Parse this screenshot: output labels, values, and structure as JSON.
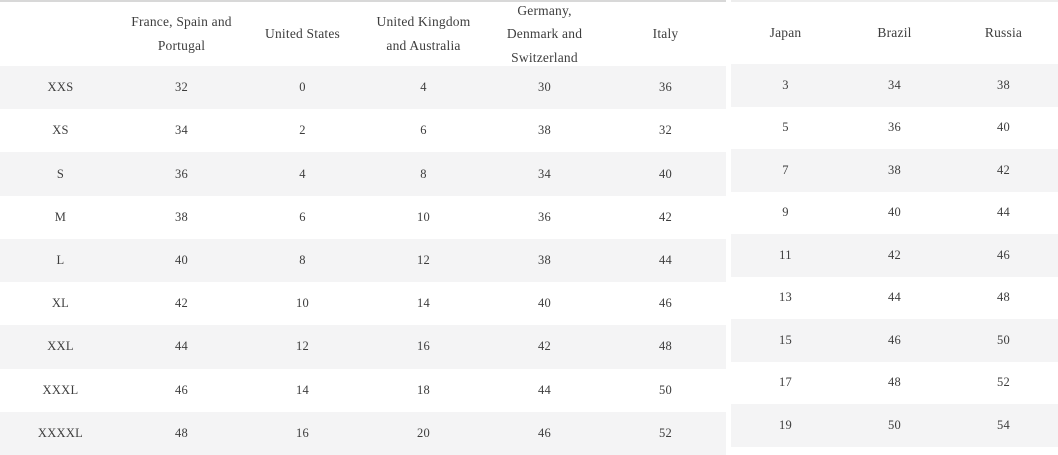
{
  "size_tables": {
    "international": {
      "columns": [
        "",
        "France, Spain and Portugal",
        "United States",
        "United Kingdom and Australia",
        "Germany, Denmark and Switzerland",
        "Italy"
      ],
      "rows": [
        [
          "XXS",
          "32",
          "0",
          "4",
          "30",
          "36"
        ],
        [
          "XS",
          "34",
          "2",
          "6",
          "38",
          "32"
        ],
        [
          "S",
          "36",
          "4",
          "8",
          "34",
          "40"
        ],
        [
          "M",
          "38",
          "6",
          "10",
          "36",
          "42"
        ],
        [
          "L",
          "40",
          "8",
          "12",
          "38",
          "44"
        ],
        [
          "XL",
          "42",
          "10",
          "14",
          "40",
          "46"
        ],
        [
          "XXL",
          "44",
          "12",
          "16",
          "42",
          "48"
        ],
        [
          "XXXL",
          "46",
          "14",
          "18",
          "44",
          "50"
        ],
        [
          "XXXXL",
          "48",
          "16",
          "20",
          "46",
          "52"
        ]
      ]
    },
    "asia_americas": {
      "columns": [
        "Japan",
        "Brazil",
        "Russia"
      ],
      "rows": [
        [
          "3",
          "34",
          "38"
        ],
        [
          "5",
          "36",
          "40"
        ],
        [
          "7",
          "38",
          "42"
        ],
        [
          "9",
          "40",
          "44"
        ],
        [
          "11",
          "42",
          "46"
        ],
        [
          "13",
          "44",
          "48"
        ],
        [
          "15",
          "46",
          "50"
        ],
        [
          "17",
          "48",
          "52"
        ],
        [
          "19",
          "50",
          "54"
        ]
      ]
    }
  },
  "colors": {
    "stripe": "#f4f4f5",
    "text": "#3d3d3d",
    "top_border_left": "#d8d8d8",
    "top_border_right": "#ededed"
  }
}
